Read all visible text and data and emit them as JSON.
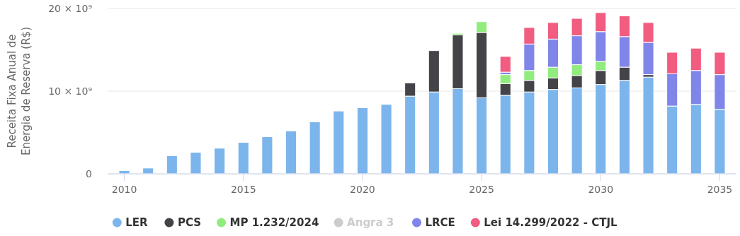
{
  "chart_data": {
    "type": "bar",
    "stacked": true,
    "ylabel": "Receita Fixa Anual de Energia de Reserva (R$)",
    "x": [
      2010,
      2011,
      2012,
      2013,
      2014,
      2015,
      2016,
      2017,
      2018,
      2019,
      2020,
      2021,
      2022,
      2023,
      2024,
      2025,
      2026,
      2027,
      2028,
      2029,
      2030,
      2031,
      2032,
      2033,
      2034,
      2035
    ],
    "xlim": [
      2009.3,
      2035.7
    ],
    "xticks": [
      2010,
      2015,
      2020,
      2025,
      2030,
      2035
    ],
    "ylim": [
      0,
      20000000000
    ],
    "yticks": [
      0,
      {
        "value": 10000000000,
        "label": "10 × 10⁹"
      },
      {
        "value": 20000000000,
        "label": "20 × 10⁹"
      }
    ],
    "grid": "y",
    "legend": "bottom",
    "series": [
      {
        "name": "LER",
        "color": "#7cb5ec",
        "values": [
          400000000,
          700000000,
          2200000000,
          2600000000,
          3100000000,
          3800000000,
          4500000000,
          5200000000,
          6300000000,
          7600000000,
          8000000000,
          8400000000,
          9400000000,
          9900000000,
          10300000000,
          9200000000,
          9500000000,
          9900000000,
          10200000000,
          10400000000,
          10800000000,
          11300000000,
          11700000000,
          8200000000,
          8400000000,
          7800000000
        ]
      },
      {
        "name": "PCS",
        "color": "#434348",
        "values": [
          null,
          null,
          null,
          null,
          null,
          null,
          null,
          null,
          null,
          null,
          null,
          null,
          1600000000,
          5000000000,
          6500000000,
          7900000000,
          1400000000,
          1400000000,
          1400000000,
          1500000000,
          1700000000,
          1600000000,
          300000000,
          null,
          null,
          null
        ]
      },
      {
        "name": "MP 1.232/2024",
        "color": "#90ed7d",
        "values": [
          null,
          null,
          null,
          null,
          null,
          null,
          null,
          null,
          null,
          null,
          null,
          null,
          null,
          null,
          200000000,
          1300000000,
          1100000000,
          1200000000,
          1300000000,
          1300000000,
          1100000000,
          null,
          null,
          null,
          null,
          null
        ]
      },
      {
        "name": "Angra 3",
        "color": "#cccccc",
        "values": [
          null,
          null,
          null,
          null,
          null,
          null,
          null,
          null,
          null,
          null,
          null,
          null,
          null,
          null,
          null,
          null,
          null,
          null,
          null,
          null,
          null,
          null,
          null,
          null,
          null,
          null
        ]
      },
      {
        "name": "LRCE",
        "color": "#8085e9",
        "values": [
          null,
          null,
          null,
          null,
          null,
          null,
          null,
          null,
          null,
          null,
          null,
          null,
          null,
          null,
          null,
          null,
          300000000,
          3200000000,
          3400000000,
          3500000000,
          3600000000,
          3700000000,
          3900000000,
          3900000000,
          4100000000,
          4200000000
        ]
      },
      {
        "name": "Lei 14.299/2022 - CTJL",
        "color": "#f15c80",
        "values": [
          null,
          null,
          null,
          null,
          null,
          null,
          null,
          null,
          null,
          null,
          null,
          null,
          null,
          null,
          null,
          null,
          1900000000,
          2000000000,
          2000000000,
          2100000000,
          2300000000,
          2500000000,
          2400000000,
          2600000000,
          2700000000,
          2700000000
        ]
      }
    ]
  }
}
